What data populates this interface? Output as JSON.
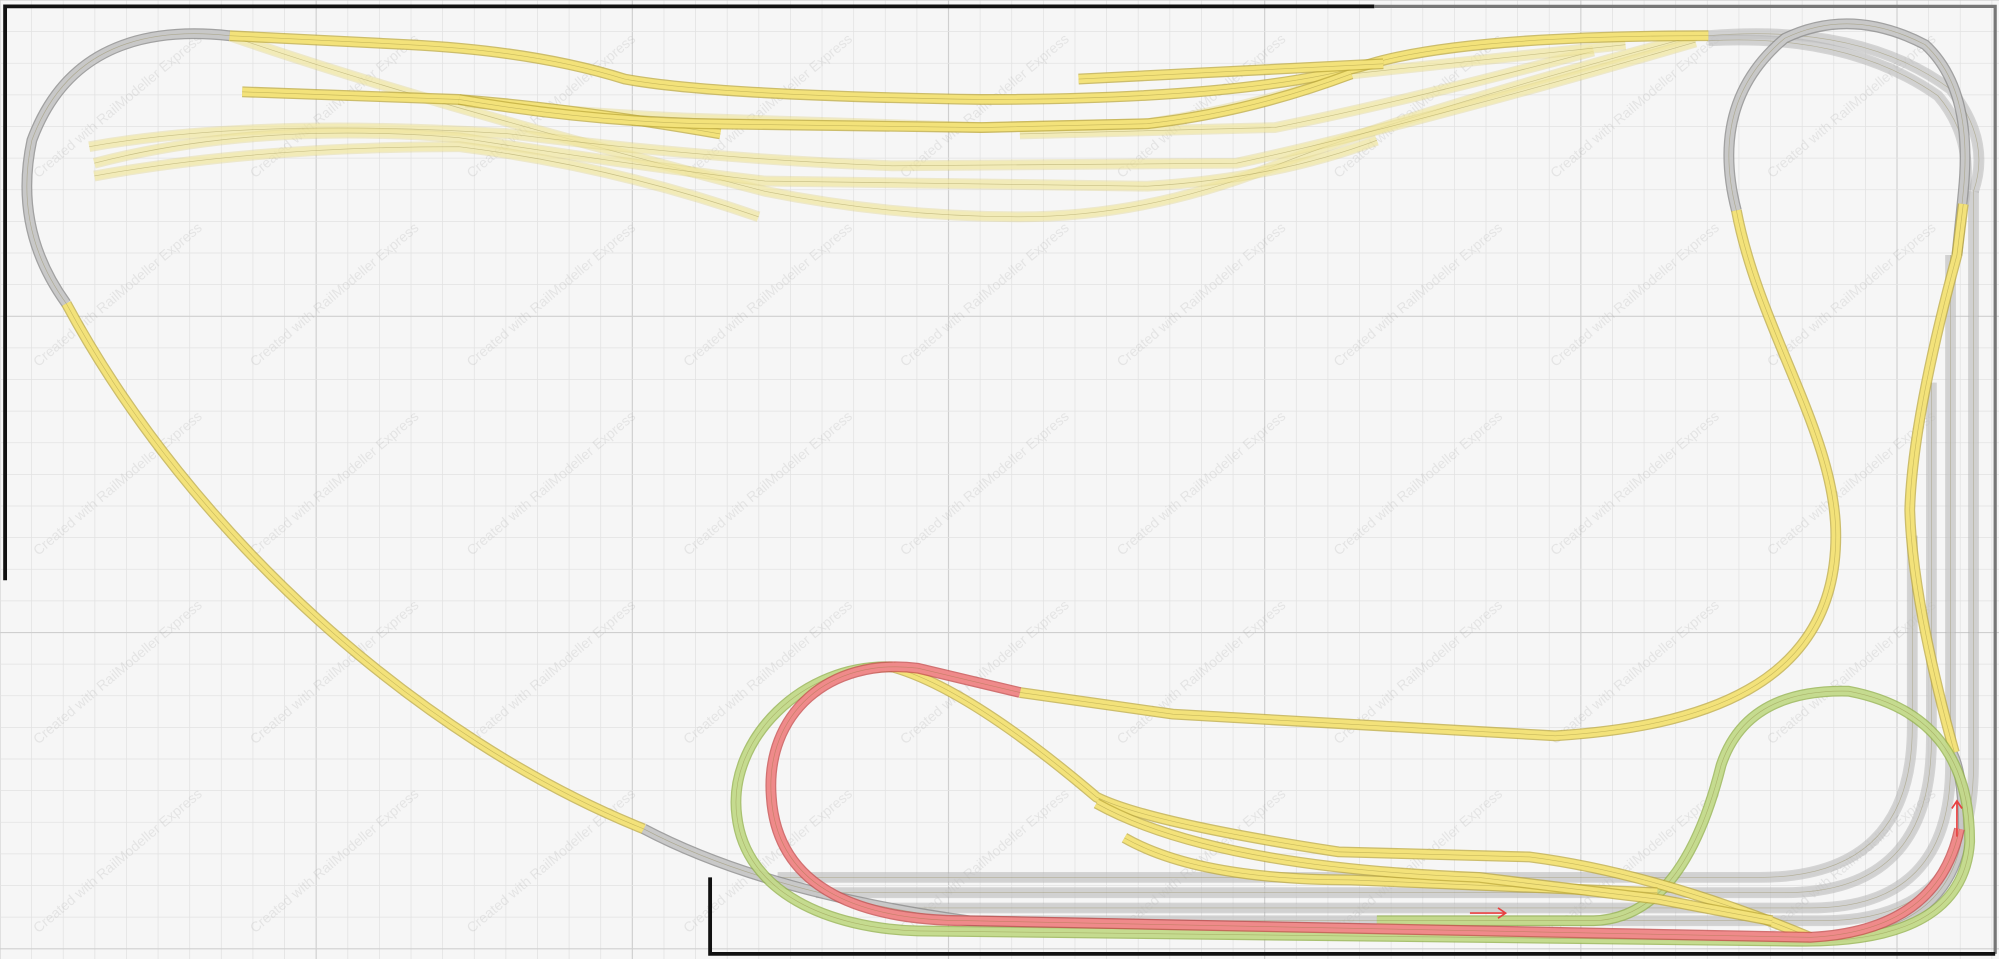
{
  "watermark": "Created with RailModeller Express",
  "colors": {
    "background": "#f6f6f6",
    "track_yellow": "#f3e27a",
    "track_yellow_faded": "#f5eeb8",
    "track_grey": "#c8c8c8",
    "track_red": "#ef8a8a",
    "track_green": "#cfe39a",
    "frame": "#111111",
    "direction_arrow": "#e84040"
  },
  "icons": [
    "direction-arrow-right",
    "direction-arrow-up"
  ]
}
